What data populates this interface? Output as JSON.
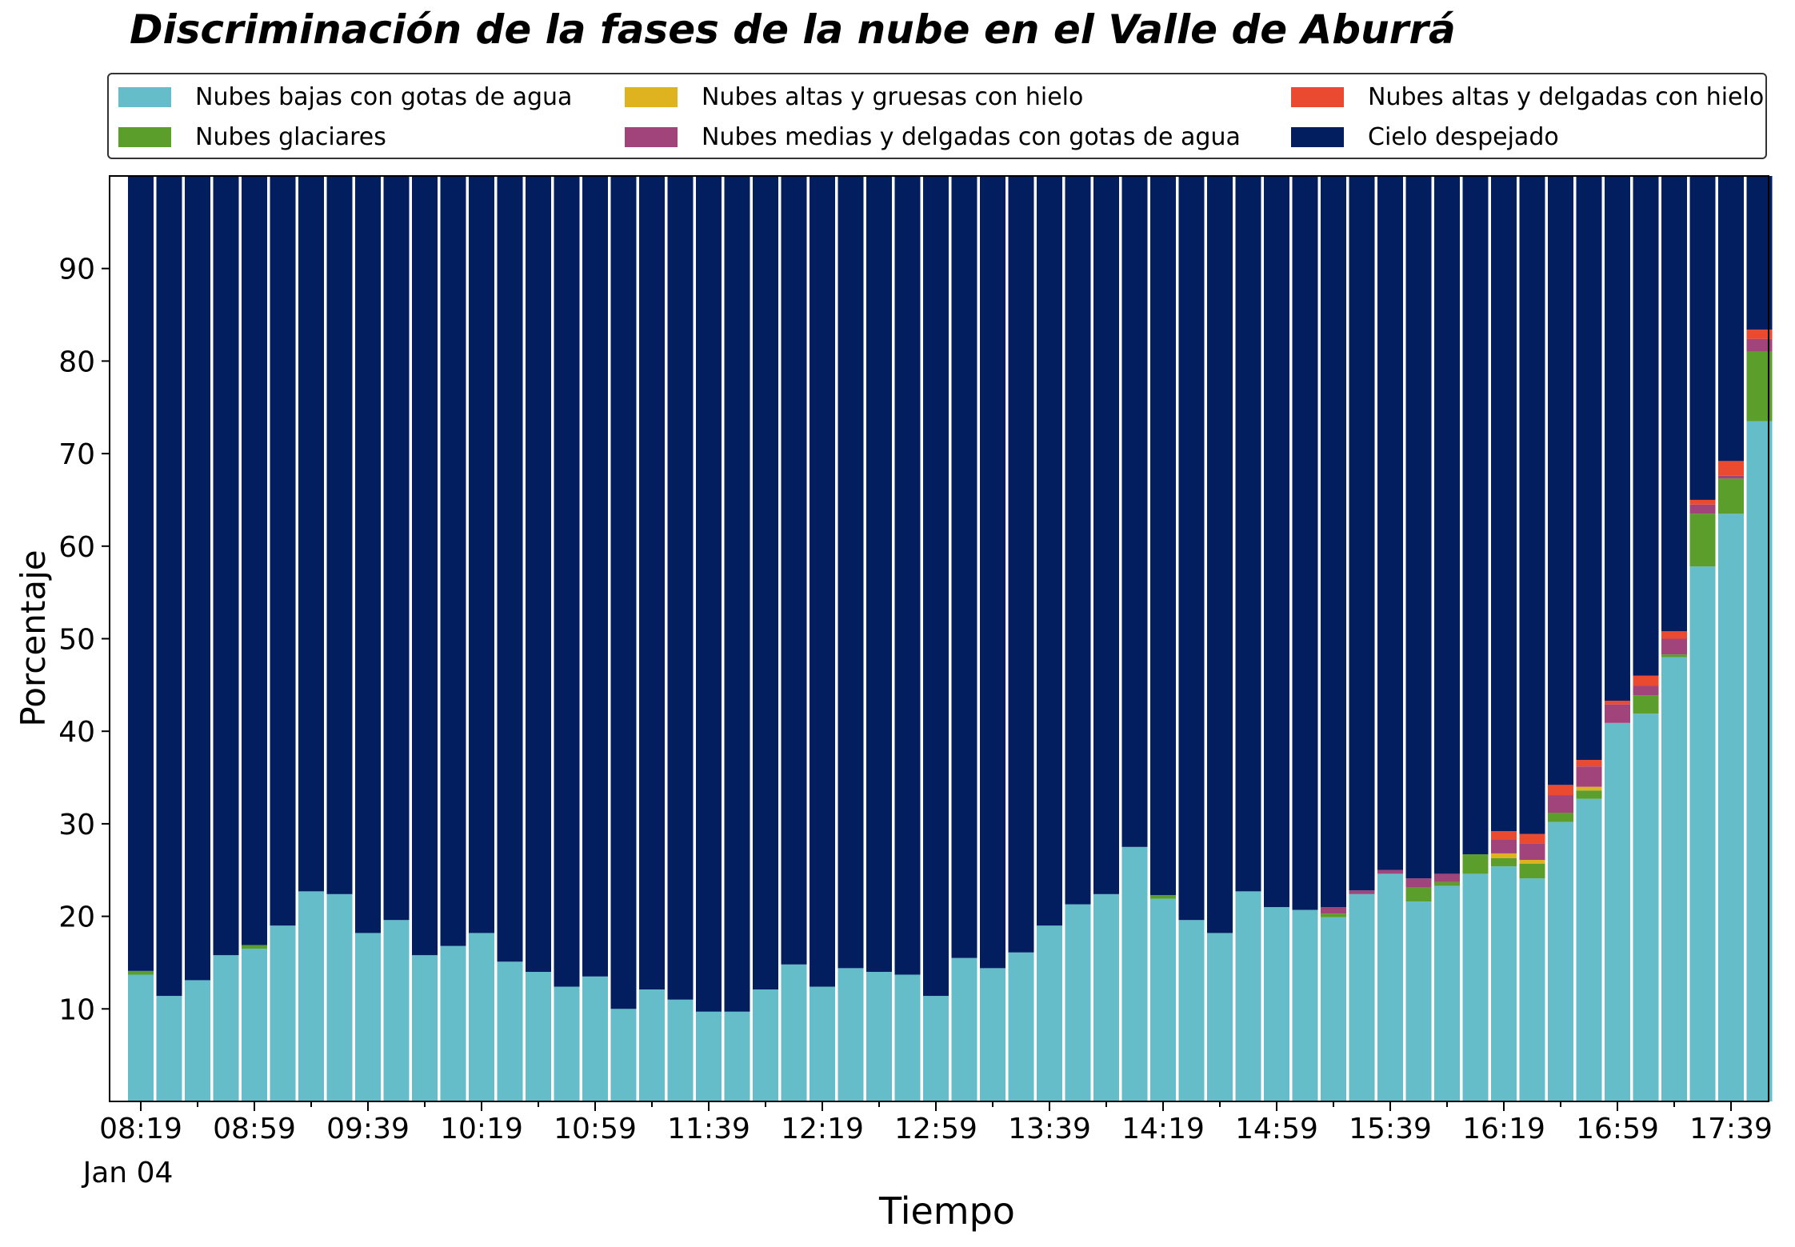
{
  "chart_data": {
    "type": "bar",
    "title": "Discriminación de la fases de la nube en el Valle de Aburrá",
    "xlabel": "Tiempo",
    "ylabel": "Porcentaje",
    "ylim": [
      0,
      100
    ],
    "yticks": [
      10,
      20,
      30,
      40,
      50,
      60,
      70,
      80,
      90
    ],
    "xtick_labels": [
      "08:19",
      "08:59",
      "09:39",
      "10:19",
      "10:59",
      "11:39",
      "12:19",
      "12:59",
      "13:39",
      "14:19",
      "14:59",
      "15:39",
      "16:19",
      "16:59",
      "17:39"
    ],
    "date_label": "Jan 04",
    "stacked": true,
    "legend_position": "top",
    "grid": false,
    "categories": [
      "08:19",
      "08:29",
      "08:39",
      "08:49",
      "08:59",
      "09:09",
      "09:19",
      "09:29",
      "09:39",
      "09:49",
      "09:59",
      "10:09",
      "10:19",
      "10:29",
      "10:39",
      "10:49",
      "10:59",
      "11:09",
      "11:19",
      "11:29",
      "11:39",
      "11:49",
      "11:59",
      "12:09",
      "12:19",
      "12:29",
      "12:39",
      "12:49",
      "12:59",
      "13:09",
      "13:19",
      "13:29",
      "13:39",
      "13:49",
      "13:59",
      "14:09",
      "14:19",
      "14:29",
      "14:39",
      "14:49",
      "14:59",
      "15:09",
      "15:19",
      "15:29",
      "15:39",
      "15:49",
      "15:59",
      "16:09",
      "16:19",
      "16:29",
      "16:39",
      "16:49",
      "16:59",
      "17:09",
      "17:19",
      "17:29",
      "17:39",
      "17:49"
    ],
    "series": [
      {
        "name": "Nubes bajas con gotas de agua",
        "color": "#64bdc8",
        "values": [
          13.7,
          11.4,
          13.1,
          15.8,
          16.5,
          19.0,
          22.7,
          22.4,
          18.2,
          19.6,
          15.8,
          16.8,
          18.2,
          15.1,
          14.0,
          12.4,
          13.5,
          10.0,
          12.1,
          11.0,
          9.7,
          9.7,
          12.1,
          14.8,
          12.4,
          14.4,
          14.0,
          13.7,
          11.4,
          15.5,
          14.4,
          16.1,
          19.0,
          21.3,
          22.4,
          27.5,
          21.9,
          19.6,
          18.2,
          22.7,
          21.0,
          20.7,
          19.9,
          22.4,
          24.6,
          21.6,
          23.3,
          24.6,
          25.4,
          24.1,
          30.2,
          32.7,
          40.9,
          41.9,
          48.0,
          57.8,
          63.5,
          73.5
        ]
      },
      {
        "name": "Nubes glaciares",
        "color": "#5b9e2c",
        "values": [
          0.4,
          0,
          0,
          0,
          0.4,
          0,
          0,
          0,
          0,
          0,
          0,
          0,
          0,
          0,
          0,
          0,
          0,
          0,
          0,
          0,
          0,
          0,
          0,
          0,
          0,
          0,
          0,
          0,
          0,
          0,
          0,
          0,
          0,
          0,
          0,
          0,
          0.4,
          0,
          0,
          0,
          0,
          0,
          0.4,
          0,
          0,
          1.5,
          0.4,
          2.1,
          0.9,
          1.6,
          1.0,
          0.9,
          0,
          2.0,
          0.3,
          5.7,
          3.8,
          7.5
        ]
      },
      {
        "name": "Nubes altas y gruesas con hielo",
        "color": "#dfb21f",
        "values": [
          0,
          0,
          0,
          0,
          0,
          0,
          0,
          0,
          0,
          0,
          0,
          0,
          0,
          0,
          0,
          0,
          0,
          0,
          0,
          0,
          0,
          0,
          0,
          0,
          0,
          0,
          0,
          0,
          0,
          0,
          0,
          0,
          0,
          0,
          0,
          0,
          0,
          0,
          0,
          0,
          0,
          0,
          0,
          0,
          0,
          0,
          0,
          0,
          0.5,
          0.4,
          0,
          0.4,
          0,
          0,
          0,
          0,
          0,
          0
        ]
      },
      {
        "name": "Nubes medias y delgadas con gotas de agua",
        "color": "#a2447c",
        "values": [
          0,
          0,
          0,
          0,
          0,
          0,
          0,
          0,
          0,
          0,
          0,
          0,
          0,
          0,
          0,
          0,
          0,
          0,
          0,
          0,
          0,
          0,
          0,
          0,
          0,
          0,
          0,
          0,
          0,
          0,
          0,
          0,
          0,
          0,
          0,
          0,
          0,
          0,
          0,
          0,
          0,
          0,
          0.7,
          0.4,
          0.4,
          1.0,
          0.9,
          0,
          1.5,
          1.8,
          1.9,
          2.2,
          2.0,
          1.0,
          1.7,
          1.0,
          0.3,
          1.4
        ]
      },
      {
        "name": "Nubes altas y delgadas con hielo",
        "color": "#ea4a2f",
        "values": [
          0,
          0,
          0,
          0,
          0,
          0,
          0,
          0,
          0,
          0,
          0,
          0,
          0,
          0,
          0,
          0,
          0,
          0,
          0,
          0,
          0,
          0,
          0,
          0,
          0,
          0,
          0,
          0,
          0,
          0,
          0,
          0,
          0,
          0,
          0,
          0,
          0,
          0,
          0,
          0,
          0,
          0,
          0,
          0,
          0,
          0,
          0,
          0,
          0.9,
          1.0,
          1.1,
          0.7,
          0.4,
          1.1,
          0.8,
          0.5,
          1.6,
          1.0
        ]
      },
      {
        "name": "Cielo despejado",
        "color": "#031e5f",
        "values": [
          85.9,
          88.6,
          86.9,
          84.2,
          83.1,
          81.0,
          77.3,
          77.6,
          81.8,
          80.4,
          84.2,
          83.2,
          81.8,
          84.9,
          86.0,
          87.6,
          86.5,
          90.0,
          87.9,
          89.0,
          90.3,
          90.3,
          87.9,
          85.2,
          87.6,
          85.6,
          86.0,
          86.3,
          88.6,
          84.5,
          85.6,
          83.9,
          81.0,
          78.7,
          77.6,
          72.5,
          77.7,
          80.4,
          81.8,
          77.3,
          79.0,
          79.3,
          79.0,
          77.2,
          75.0,
          75.9,
          75.4,
          73.3,
          70.8,
          71.1,
          65.8,
          63.1,
          56.7,
          54.0,
          49.2,
          35.0,
          30.8,
          16.6
        ]
      }
    ]
  },
  "legend_columns": [
    [
      "Nubes bajas con gotas de agua",
      "Nubes glaciares"
    ],
    [
      "Nubes altas y gruesas con hielo",
      "Nubes medias y delgadas con gotas de agua"
    ],
    [
      "Nubes altas y delgadas con hielo",
      "Cielo despejado"
    ]
  ]
}
